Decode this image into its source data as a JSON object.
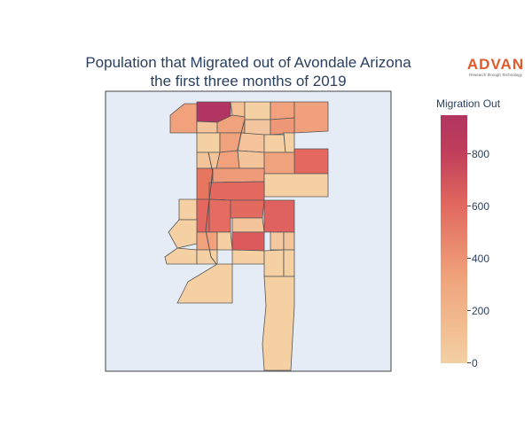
{
  "title": {
    "line1": "Population that Migrated out of Avondale Arizona",
    "line2": "the first three months of 2019"
  },
  "logo": {
    "word": "ADVAN",
    "tagline": "Research through Technology"
  },
  "colorbar": {
    "title": "Migration Out",
    "ticks": [
      "0",
      "200",
      "400",
      "600",
      "800"
    ],
    "range": [
      0,
      950
    ],
    "colors": {
      "low": "#f3d0a2",
      "mid_low": "#f0a27a",
      "mid": "#e0665e",
      "high": "#b13560"
    }
  },
  "map": {
    "background": "#e5ecf6",
    "border_color": "#555555",
    "region_values": {
      "northwest_top": 300,
      "north_peak": 950,
      "north_right_top": 350,
      "east_top": 400,
      "center_north": 420,
      "east_mid": 520,
      "center_large": 560,
      "center_mid": 600,
      "south_center": 610,
      "south_long": 100
    }
  }
}
